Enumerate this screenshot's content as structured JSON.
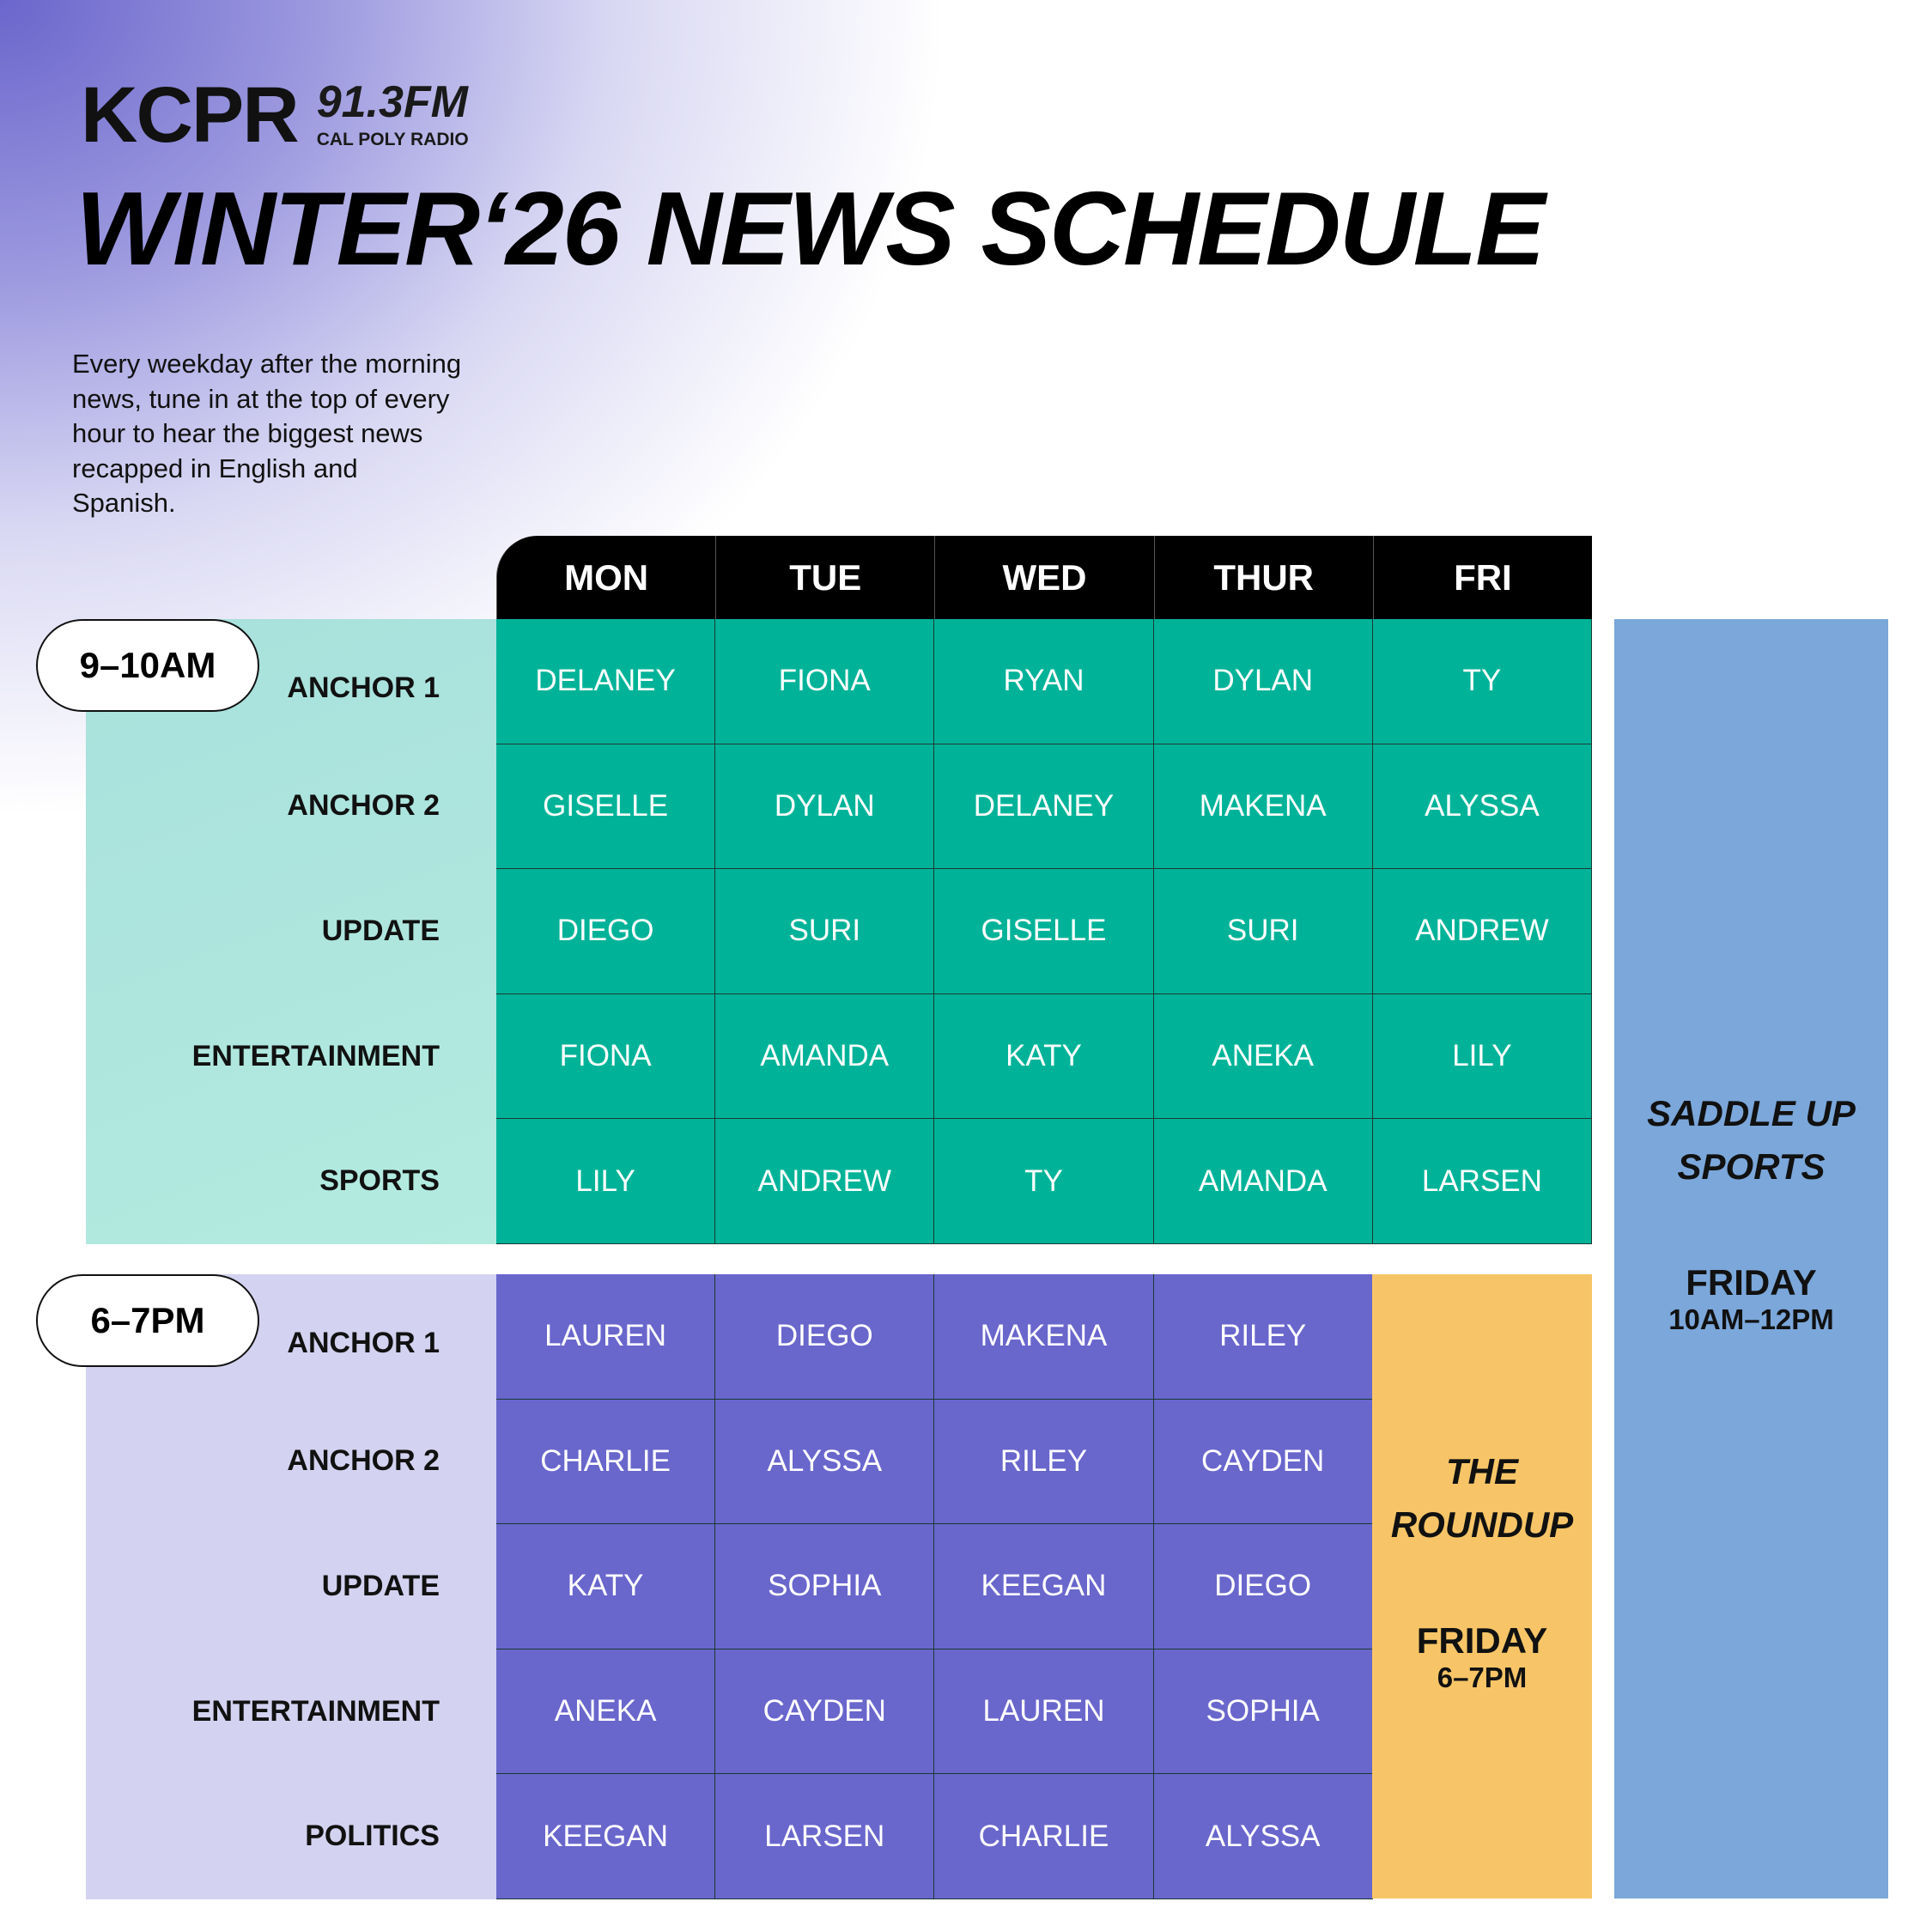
{
  "brand": {
    "name": "KCPR",
    "frequency": "91.3FM",
    "tagline": "CAL POLY RADIO",
    "logo_icon": "record-broadcast-icon"
  },
  "title": "WINTER‘26 NEWS SCHEDULE",
  "intro": "Every weekday after the morning news, tune in at the top of every hour to hear the biggest news recapped in English and Spanish.",
  "days": [
    "MON",
    "TUE",
    "WED",
    "THUR",
    "FRI"
  ],
  "colors": {
    "morning_cell": "#00B398",
    "morning_label_bg": "#B0E8DF",
    "evening_cell": "#6966CC",
    "evening_label_bg": "#D3D2F0",
    "roundup": "#F7C567",
    "saddle_up": "#7BA7DA",
    "header": "#000000"
  },
  "blocks": [
    {
      "time": "9–10AM",
      "rows": [
        {
          "label": "ANCHOR 1",
          "names": [
            "DELANEY",
            "FIONA",
            "RYAN",
            "DYLAN",
            "TY"
          ]
        },
        {
          "label": "ANCHOR 2",
          "names": [
            "GISELLE",
            "DYLAN",
            "DELANEY",
            "MAKENA",
            "ALYSSA"
          ]
        },
        {
          "label": "UPDATE",
          "names": [
            "DIEGO",
            "SURI",
            "GISELLE",
            "SURI",
            "ANDREW"
          ]
        },
        {
          "label": "ENTERTAINMENT",
          "names": [
            "FIONA",
            "AMANDA",
            "KATY",
            "ANEKA",
            "LILY"
          ]
        },
        {
          "label": "SPORTS",
          "names": [
            "LILY",
            "ANDREW",
            "TY",
            "AMANDA",
            "LARSEN"
          ]
        }
      ]
    },
    {
      "time": "6–7PM",
      "rows": [
        {
          "label": "ANCHOR 1",
          "names": [
            "LAUREN",
            "DIEGO",
            "MAKENA",
            "RILEY"
          ]
        },
        {
          "label": "ANCHOR 2",
          "names": [
            "CHARLIE",
            "ALYSSA",
            "RILEY",
            "CAYDEN"
          ]
        },
        {
          "label": "UPDATE",
          "names": [
            "KATY",
            "SOPHIA",
            "KEEGAN",
            "DIEGO"
          ]
        },
        {
          "label": "ENTERTAINMENT",
          "names": [
            "ANEKA",
            "CAYDEN",
            "LAUREN",
            "SOPHIA"
          ]
        },
        {
          "label": "POLITICS",
          "names": [
            "KEEGAN",
            "LARSEN",
            "CHARLIE",
            "ALYSSA"
          ]
        }
      ]
    }
  ],
  "roundup": {
    "name": "THE ROUNDUP",
    "day": "FRIDAY",
    "time": "6–7PM"
  },
  "saddle_up": {
    "name": "SADDLE UP SPORTS",
    "day": "FRIDAY",
    "time": "10AM–12PM"
  }
}
